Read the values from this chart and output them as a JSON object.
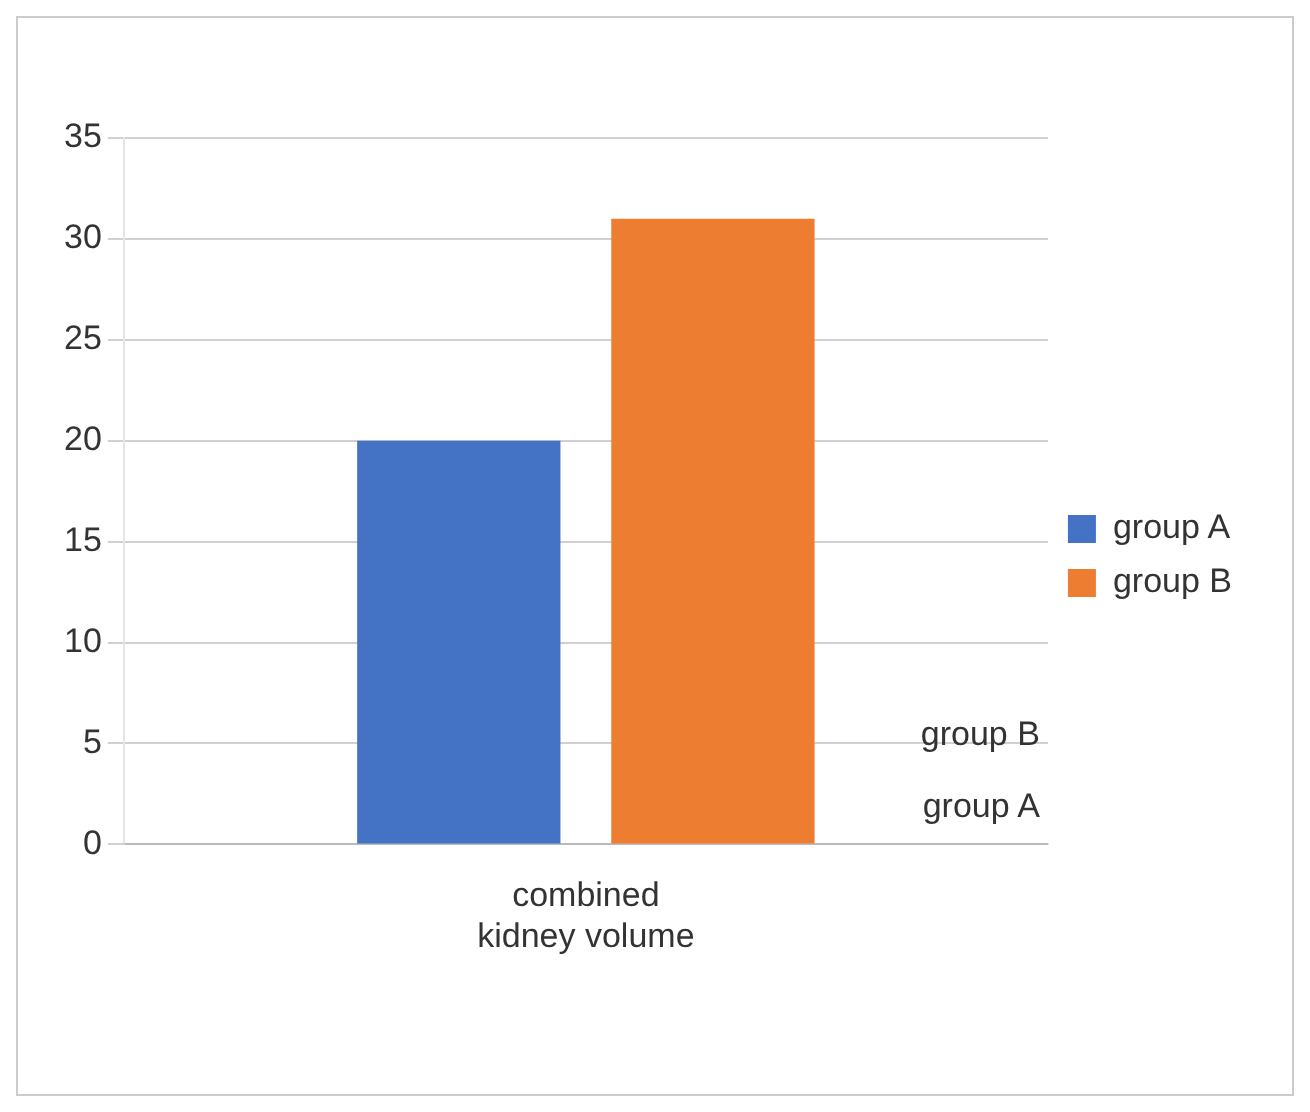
{
  "chart_data": {
    "type": "bar",
    "categories": [
      "combined kidney volume"
    ],
    "series": [
      {
        "name": "group A",
        "color": "#4472c4",
        "values": [
          20
        ]
      },
      {
        "name": "group B",
        "color": "#ed7d31",
        "values": [
          31
        ]
      }
    ],
    "ylim": [
      0,
      35
    ],
    "yticks": [
      0,
      5,
      10,
      15,
      20,
      25,
      30,
      35
    ],
    "grid": "y",
    "legend": "right"
  }
}
